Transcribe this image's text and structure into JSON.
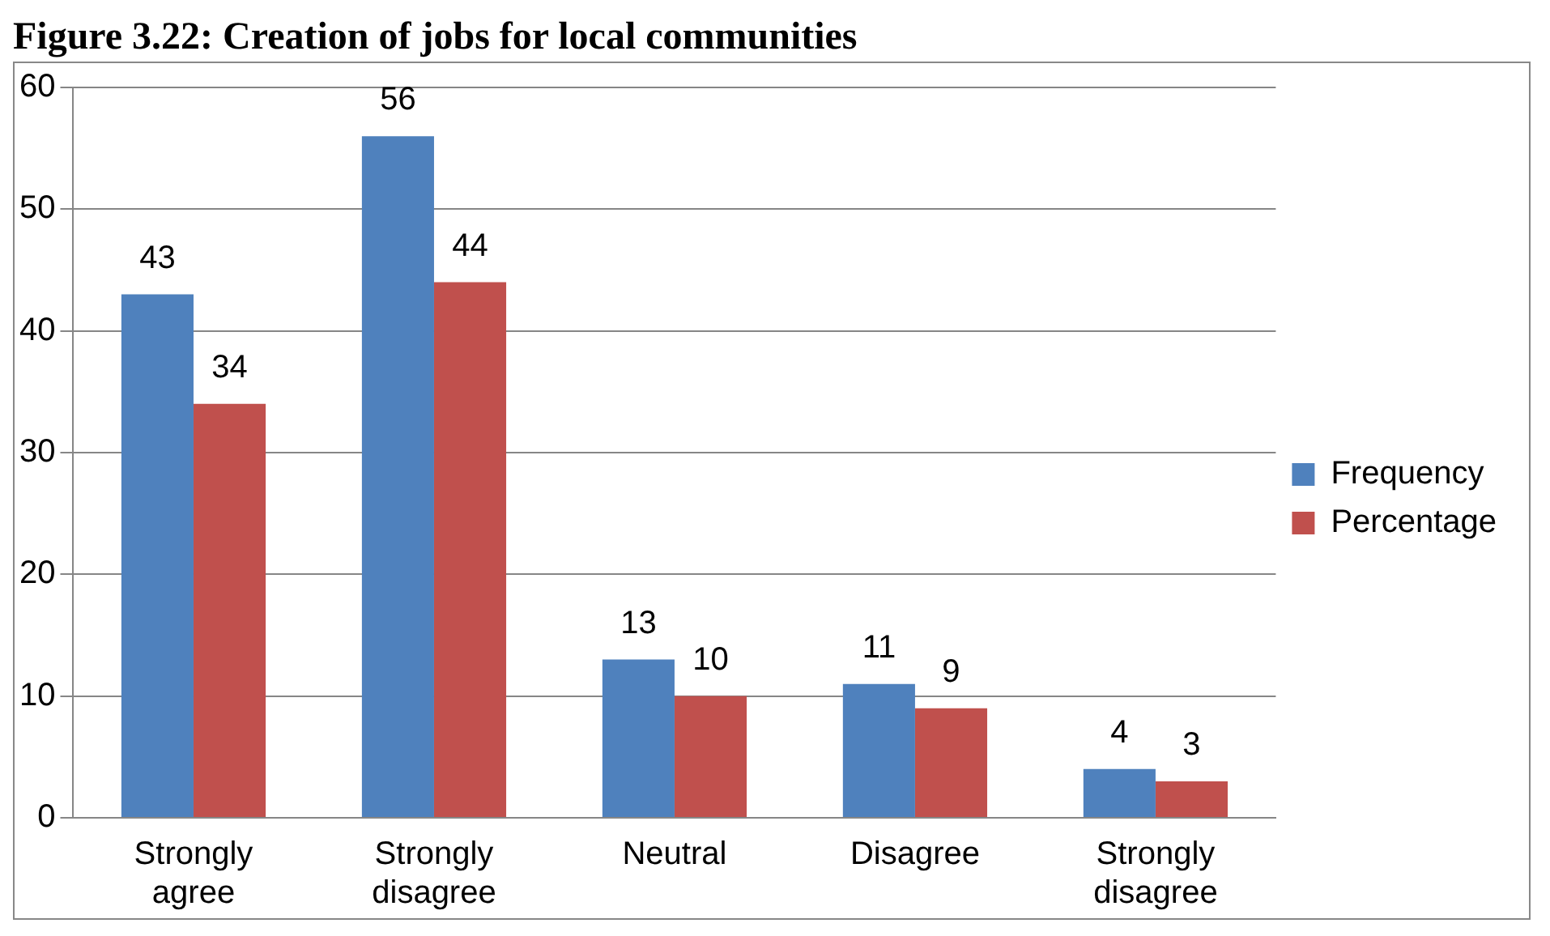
{
  "chart_data": {
    "type": "bar",
    "title": "Figure 3.22: Creation of jobs for local communities",
    "categories": [
      "Strongly agree",
      "Strongly disagree",
      "Neutral",
      "Disagree",
      "Strongly disagree"
    ],
    "series": [
      {
        "name": "Frequency",
        "color": "#4f81bd",
        "values": [
          43,
          56,
          13,
          11,
          4
        ]
      },
      {
        "name": "Percentage",
        "color": "#c0504d",
        "values": [
          34,
          44,
          10,
          9,
          3
        ]
      }
    ],
    "ylim": [
      0,
      60
    ],
    "yticks": [
      0,
      10,
      20,
      30,
      40,
      50,
      60
    ],
    "grid": "y",
    "legend": "right",
    "data_labels": true
  }
}
